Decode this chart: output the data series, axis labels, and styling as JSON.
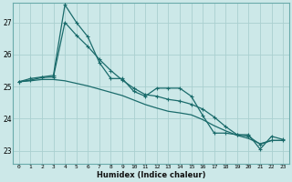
{
  "xlabel": "Humidex (Indice chaleur)",
  "bg_color": "#cce8e8",
  "grid_color": "#aad0d0",
  "line_color": "#1a6b6b",
  "xlim": [
    -0.5,
    23.5
  ],
  "ylim": [
    22.6,
    27.6
  ],
  "yticks": [
    23,
    24,
    25,
    26,
    27
  ],
  "xticks": [
    0,
    1,
    2,
    3,
    4,
    5,
    6,
    7,
    8,
    9,
    10,
    11,
    12,
    13,
    14,
    15,
    16,
    17,
    18,
    19,
    20,
    21,
    22,
    23
  ],
  "line1_x": [
    0,
    1,
    2,
    3,
    4,
    5,
    6,
    7,
    8,
    9,
    10,
    11,
    12,
    13,
    14,
    15,
    16,
    17,
    18,
    19,
    20,
    21,
    22,
    23
  ],
  "line1_y": [
    25.15,
    25.25,
    25.3,
    25.35,
    27.55,
    27.0,
    26.55,
    25.75,
    25.25,
    25.25,
    24.85,
    24.7,
    24.95,
    24.95,
    24.95,
    24.7,
    24.1,
    23.55,
    23.55,
    23.5,
    23.5,
    23.05,
    23.45,
    23.35
  ],
  "line2_x": [
    0,
    1,
    2,
    3,
    4,
    5,
    6,
    7,
    8,
    9,
    10,
    11,
    12,
    13,
    14,
    15,
    16,
    17,
    18,
    19,
    20,
    21,
    22,
    23
  ],
  "line2_y": [
    25.15,
    25.2,
    25.28,
    25.3,
    27.0,
    26.6,
    26.25,
    25.85,
    25.5,
    25.2,
    24.95,
    24.75,
    24.7,
    24.6,
    24.55,
    24.45,
    24.3,
    24.05,
    23.75,
    23.5,
    23.45,
    23.2,
    23.32,
    23.32
  ],
  "line3_x": [
    0,
    1,
    2,
    3,
    4,
    5,
    6,
    7,
    8,
    9,
    10,
    11,
    12,
    13,
    14,
    15,
    16,
    17,
    18,
    19,
    20,
    21,
    22,
    23
  ],
  "line3_y": [
    25.15,
    25.18,
    25.22,
    25.22,
    25.18,
    25.1,
    25.02,
    24.92,
    24.82,
    24.72,
    24.58,
    24.44,
    24.33,
    24.23,
    24.18,
    24.12,
    23.97,
    23.78,
    23.62,
    23.48,
    23.38,
    23.22,
    23.32,
    23.32
  ]
}
